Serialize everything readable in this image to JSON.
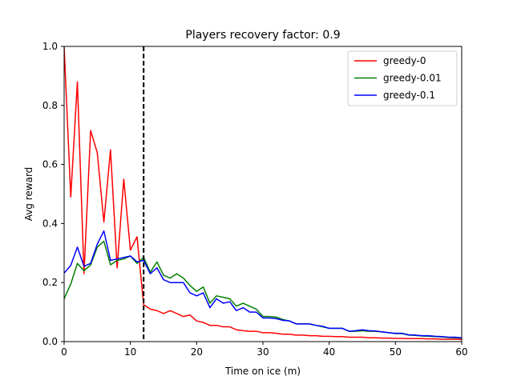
{
  "chart_data": {
    "type": "line",
    "title": "Players recovery factor: 0.9",
    "xlabel": "Time on ice (m)",
    "ylabel": "Avg reward",
    "xlim": [
      0,
      60
    ],
    "ylim": [
      0,
      1.0
    ],
    "xticks": [
      0,
      10,
      20,
      30,
      40,
      50,
      60
    ],
    "xtick_labels": [
      "0",
      "10",
      "20",
      "30",
      "40",
      "50",
      "60"
    ],
    "yticks": [
      0.0,
      0.2,
      0.4,
      0.6,
      0.8,
      1.0
    ],
    "ytick_labels": [
      "0.0",
      "0.2",
      "0.4",
      "0.6",
      "0.8",
      "1.0"
    ],
    "grid": false,
    "legend_position": "top-right",
    "vline": {
      "x": 12,
      "style": "dashed",
      "color": "#000000"
    },
    "x": [
      0,
      1,
      2,
      3,
      4,
      5,
      6,
      7,
      8,
      9,
      10,
      11,
      12,
      13,
      14,
      15,
      16,
      17,
      18,
      19,
      20,
      21,
      22,
      23,
      24,
      25,
      26,
      27,
      28,
      29,
      30,
      31,
      32,
      33,
      34,
      35,
      36,
      37,
      38,
      39,
      40,
      41,
      42,
      43,
      44,
      45,
      46,
      47,
      48,
      49,
      50,
      51,
      52,
      53,
      54,
      55,
      56,
      57,
      58,
      59,
      60
    ],
    "series": [
      {
        "name": "greedy-0",
        "color": "#ff0000",
        "values": [
          1.0,
          0.49,
          0.88,
          0.23,
          0.715,
          0.64,
          0.405,
          0.65,
          0.25,
          0.55,
          0.31,
          0.355,
          0.125,
          0.11,
          0.105,
          0.095,
          0.105,
          0.095,
          0.085,
          0.09,
          0.07,
          0.065,
          0.055,
          0.055,
          0.05,
          0.05,
          0.04,
          0.037,
          0.035,
          0.035,
          0.03,
          0.03,
          0.028,
          0.025,
          0.025,
          0.022,
          0.022,
          0.02,
          0.02,
          0.018,
          0.018,
          0.017,
          0.017,
          0.015,
          0.015,
          0.015,
          0.013,
          0.013,
          0.012,
          0.012,
          0.011,
          0.011,
          0.01,
          0.01,
          0.01,
          0.009,
          0.009,
          0.008,
          0.008,
          0.008,
          0.007
        ]
      },
      {
        "name": "greedy-0.01",
        "color": "#008000",
        "values": [
          0.145,
          0.195,
          0.265,
          0.24,
          0.26,
          0.32,
          0.34,
          0.26,
          0.275,
          0.28,
          0.29,
          0.265,
          0.285,
          0.235,
          0.27,
          0.225,
          0.215,
          0.23,
          0.215,
          0.19,
          0.17,
          0.185,
          0.13,
          0.155,
          0.15,
          0.145,
          0.12,
          0.13,
          0.12,
          0.11,
          0.085,
          0.085,
          0.083,
          0.075,
          0.07,
          0.06,
          0.06,
          0.06,
          0.055,
          0.05,
          0.045,
          0.045,
          0.045,
          0.035,
          0.035,
          0.037,
          0.035,
          0.035,
          0.033,
          0.03,
          0.027,
          0.027,
          0.022,
          0.021,
          0.019,
          0.018,
          0.017,
          0.016,
          0.014,
          0.013,
          0.012
        ]
      },
      {
        "name": "greedy-0.1",
        "color": "#0000ff",
        "values": [
          0.232,
          0.258,
          0.32,
          0.255,
          0.265,
          0.33,
          0.375,
          0.275,
          0.28,
          0.285,
          0.29,
          0.27,
          0.275,
          0.23,
          0.25,
          0.21,
          0.2,
          0.2,
          0.2,
          0.165,
          0.155,
          0.165,
          0.115,
          0.145,
          0.13,
          0.135,
          0.105,
          0.115,
          0.1,
          0.1,
          0.08,
          0.08,
          0.078,
          0.072,
          0.07,
          0.06,
          0.06,
          0.06,
          0.055,
          0.052,
          0.045,
          0.045,
          0.045,
          0.035,
          0.037,
          0.04,
          0.037,
          0.036,
          0.033,
          0.03,
          0.028,
          0.028,
          0.023,
          0.022,
          0.02,
          0.02,
          0.018,
          0.017,
          0.015,
          0.015,
          0.013
        ]
      }
    ]
  }
}
